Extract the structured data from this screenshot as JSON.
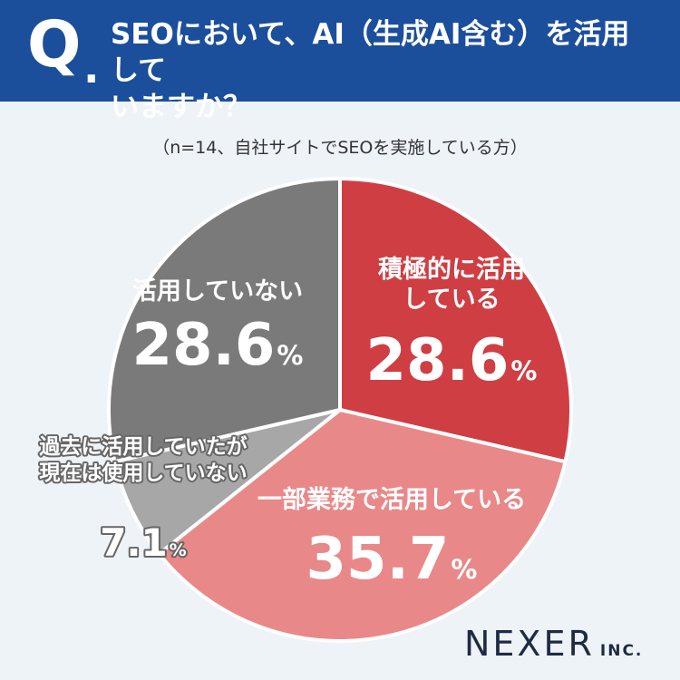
{
  "header": {
    "q_mark": "Q",
    "q_dot": ".",
    "question_line1": "SEOにおいて、AI（生成AI含む）を活用して",
    "question_line2": "いますか？"
  },
  "subtitle": "（n=14、自社サイトでSEOを実施している方）",
  "chart_data": {
    "type": "pie",
    "start_angle_deg": 0,
    "direction": "clockwise",
    "slices": [
      {
        "label_lines": [
          "積極的に活用",
          "している"
        ],
        "value": 28.6,
        "value_text": "28.6",
        "unit": "%",
        "color": "#cf3e43"
      },
      {
        "label_lines": [
          "一部業務で活用している"
        ],
        "value": 35.7,
        "value_text": "35.7",
        "unit": "%",
        "color": "#e98888"
      },
      {
        "label_lines": [
          "過去に活用していたが",
          "現在は使用していない"
        ],
        "value": 7.1,
        "value_text": "7.1",
        "unit": "%",
        "color": "#a7a7a7"
      },
      {
        "label_lines": [
          "活用していない"
        ],
        "value": 28.6,
        "value_text": "28.6",
        "unit": "%",
        "color": "#7b7a7a"
      }
    ]
  },
  "logo": {
    "main": "NEXER",
    "sub": "INC."
  }
}
